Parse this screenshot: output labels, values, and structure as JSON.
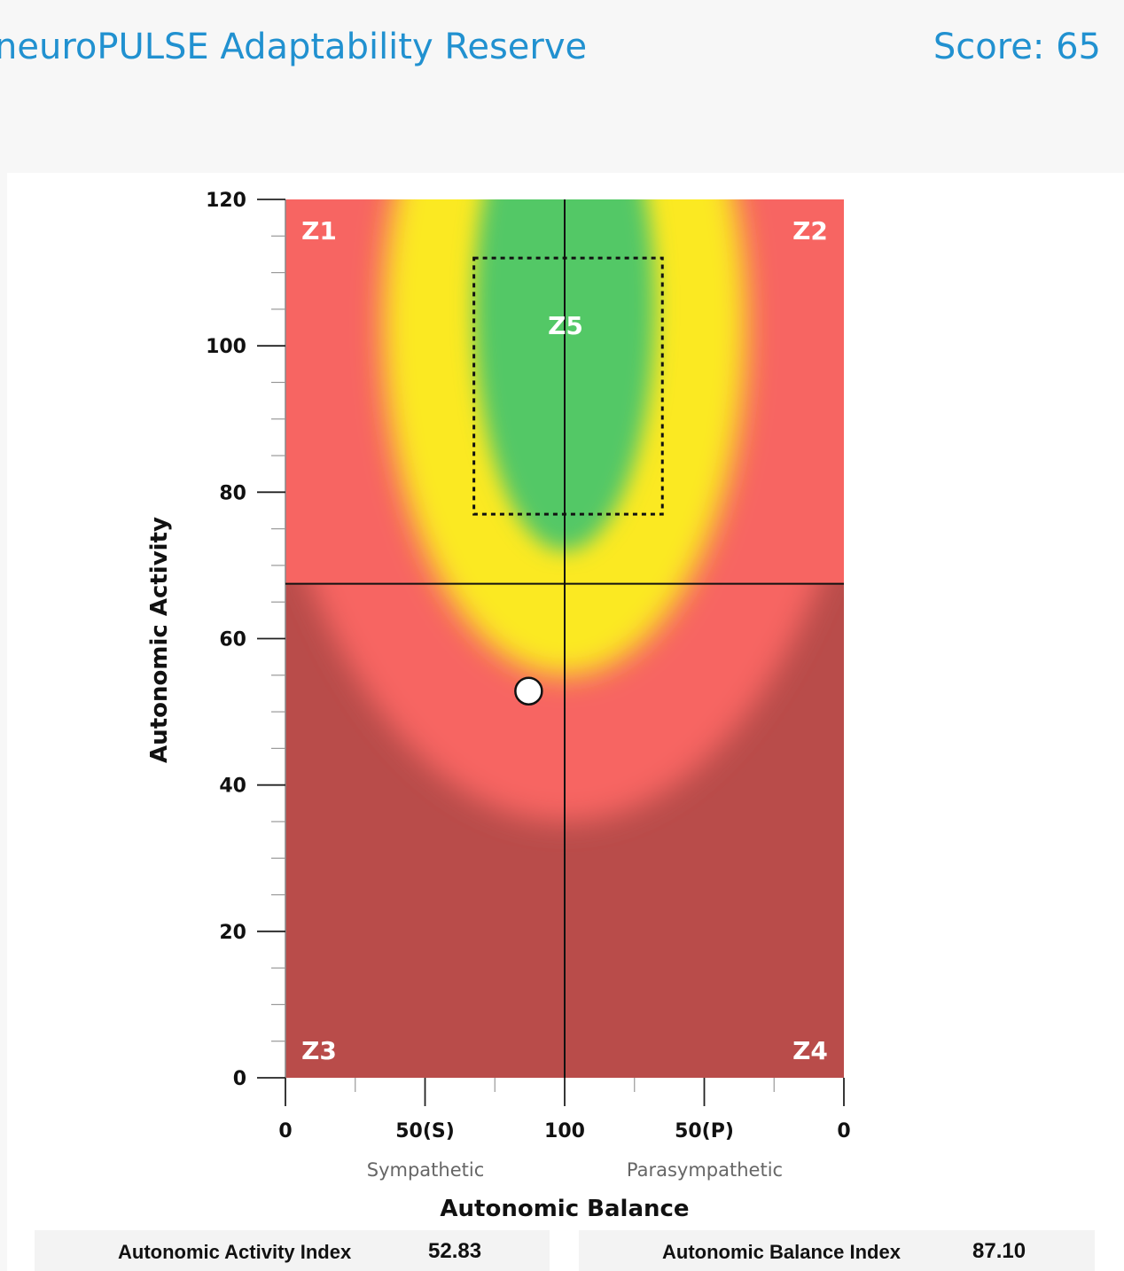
{
  "header": {
    "title": "neuroPULSE Adaptability Reserve",
    "score": "Score: 65"
  },
  "chart_data": {
    "type": "scatter",
    "title": "",
    "xlabel": "Autonomic Balance",
    "ylabel": "Autonomic Activity",
    "ylim": [
      0,
      120
    ],
    "y_ticks": [
      "0",
      "20",
      "40",
      "60",
      "80",
      "100",
      "120"
    ],
    "x_ticks": [
      "0",
      "50(S)",
      "100",
      "50(P)",
      "0"
    ],
    "x_side_labels": [
      "Sympathetic",
      "Parasympathetic"
    ],
    "zones": [
      "Z1",
      "Z2",
      "Z3",
      "Z4",
      "Z5"
    ],
    "horizontal_line_y": 67.5,
    "vertical_line_x": 100,
    "optimal_box": {
      "x_sympathetic": 67.5,
      "x_parasympathetic": 65,
      "y_min": 77,
      "y_max": 112
    },
    "point": {
      "x": 87.1,
      "side": "sympathetic",
      "y": 52.83
    },
    "colors": {
      "dark_red": "#b94c4a",
      "red": "#f76562",
      "yellow": "#fbe920",
      "green": "#52c866"
    }
  },
  "indices": {
    "activity_label": "Autonomic Activity Index",
    "activity_value": "52.83",
    "balance_label": "Autonomic Balance Index",
    "balance_value": "87.10"
  }
}
